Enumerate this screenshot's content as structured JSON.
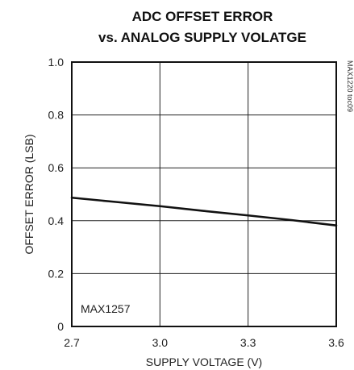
{
  "chart_data": {
    "type": "line",
    "title_lines": [
      "ADC OFFSET ERROR",
      "vs. ANALOG SUPPLY VOLATGE"
    ],
    "xlabel": "SUPPLY VOLTAGE (V)",
    "ylabel": "OFFSET ERROR (LSB)",
    "xlim": [
      2.7,
      3.6
    ],
    "ylim": [
      0,
      1.0
    ],
    "x_ticks": [
      2.7,
      3.0,
      3.3,
      3.6
    ],
    "x_tick_labels": [
      "2.7",
      "3.0",
      "3.3",
      "3.6"
    ],
    "y_ticks": [
      0,
      0.2,
      0.4,
      0.6,
      0.8,
      1.0
    ],
    "y_tick_labels": [
      "0",
      "0.2",
      "0.4",
      "0.6",
      "0.8",
      "1.0"
    ],
    "grid": true,
    "series": [
      {
        "x": [
          2.7,
          2.85,
          3.0,
          3.15,
          3.3,
          3.45,
          3.6
        ],
        "y": [
          0.487,
          0.471,
          0.455,
          0.437,
          0.42,
          0.402,
          0.382
        ],
        "color": "#111111"
      }
    ],
    "annotations": {
      "part_label": "MAX1257",
      "doc_id": "MAX1220 toc09"
    }
  }
}
